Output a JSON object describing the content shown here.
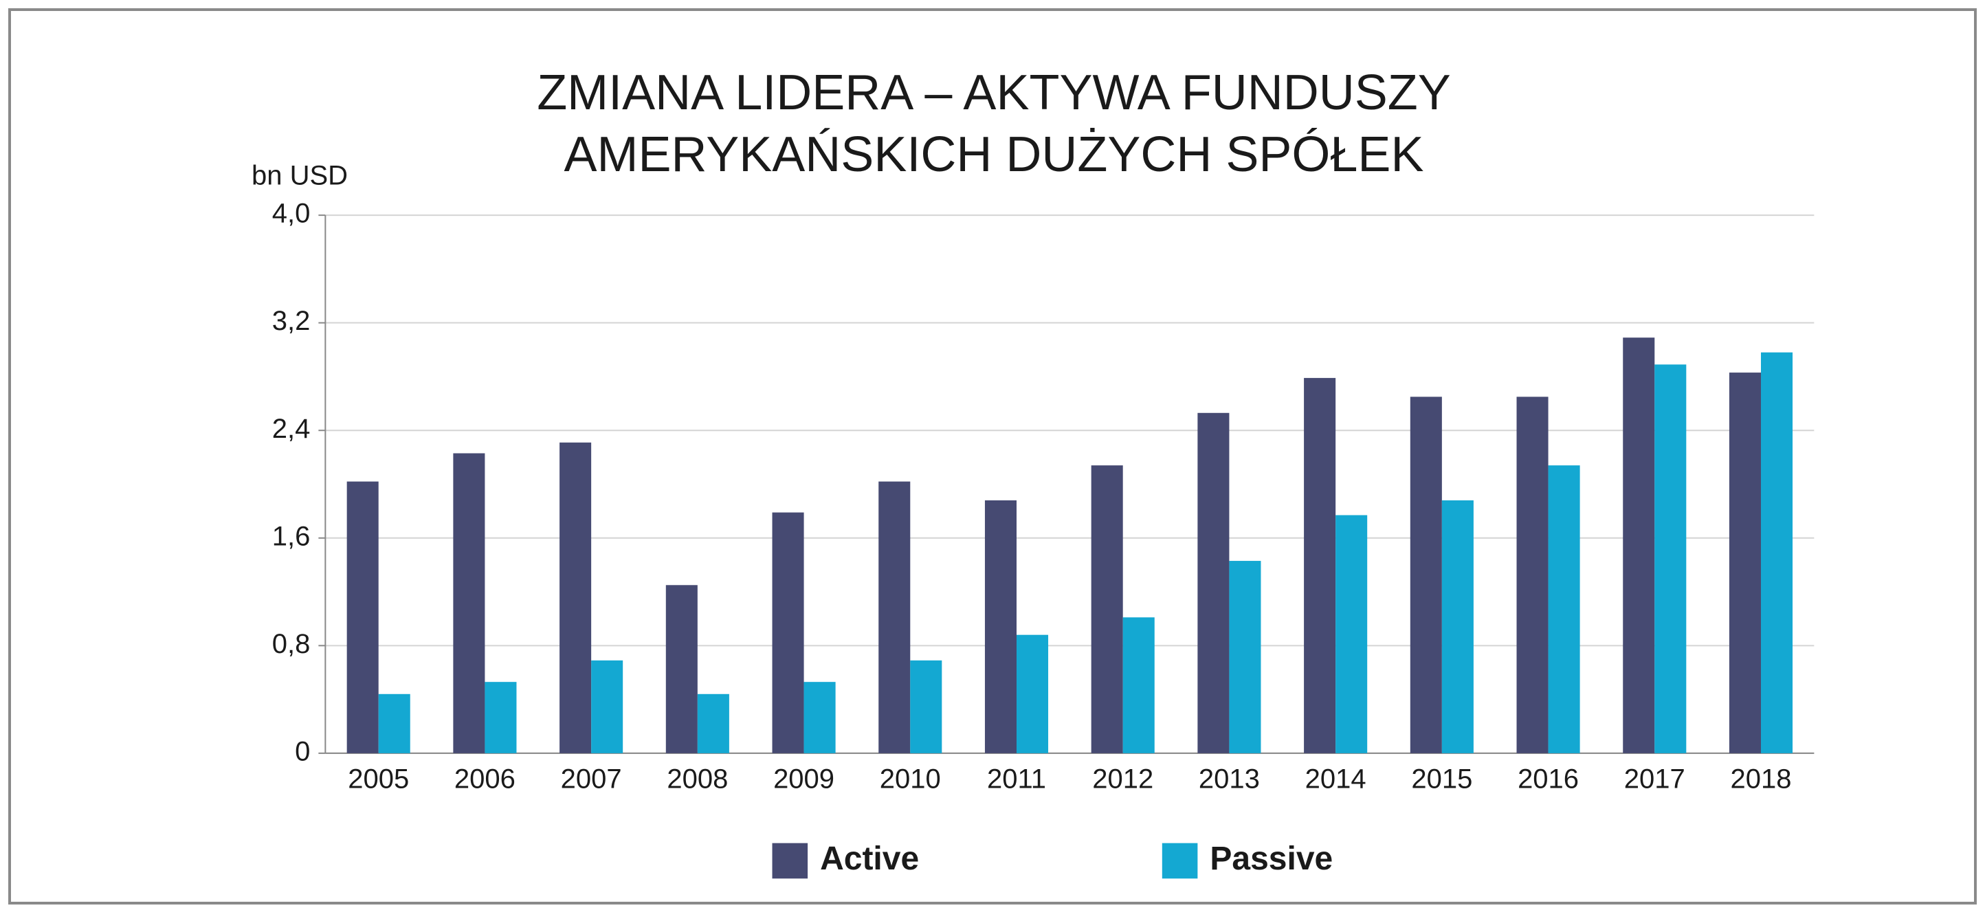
{
  "chart_data": {
    "type": "bar",
    "title": [
      "ZMIANA LIDERA – AKTYWA FUNDUSZY",
      "AMERYKAŃSKICH DUŻYCH SPÓŁEK"
    ],
    "y_label": "bn USD",
    "categories": [
      "2005",
      "2006",
      "2007",
      "2008",
      "2009",
      "2010",
      "2011",
      "2012",
      "2013",
      "2014",
      "2015",
      "2016",
      "2017",
      "2018"
    ],
    "series": [
      {
        "name": "Active",
        "color": "#464a72",
        "values": [
          2.02,
          2.23,
          2.31,
          1.25,
          1.79,
          2.02,
          1.88,
          2.14,
          2.53,
          2.79,
          2.65,
          2.65,
          3.09,
          2.83
        ]
      },
      {
        "name": "Passive",
        "color": "#14a8d2",
        "values": [
          0.44,
          0.53,
          0.69,
          0.44,
          0.53,
          0.69,
          0.88,
          1.01,
          1.43,
          1.77,
          1.88,
          2.14,
          2.89,
          2.98
        ]
      }
    ],
    "ylim": [
      0,
      4.0
    ],
    "yticks": [
      0,
      {
        "value": 0.8,
        "label": "0,8"
      },
      {
        "value": 1.6,
        "label": "1,6"
      },
      {
        "value": 2.4,
        "label": "2,4"
      },
      {
        "value": 3.2,
        "label": "3,2"
      },
      {
        "value": 4.0,
        "label": "4,0"
      }
    ],
    "grid": true
  }
}
